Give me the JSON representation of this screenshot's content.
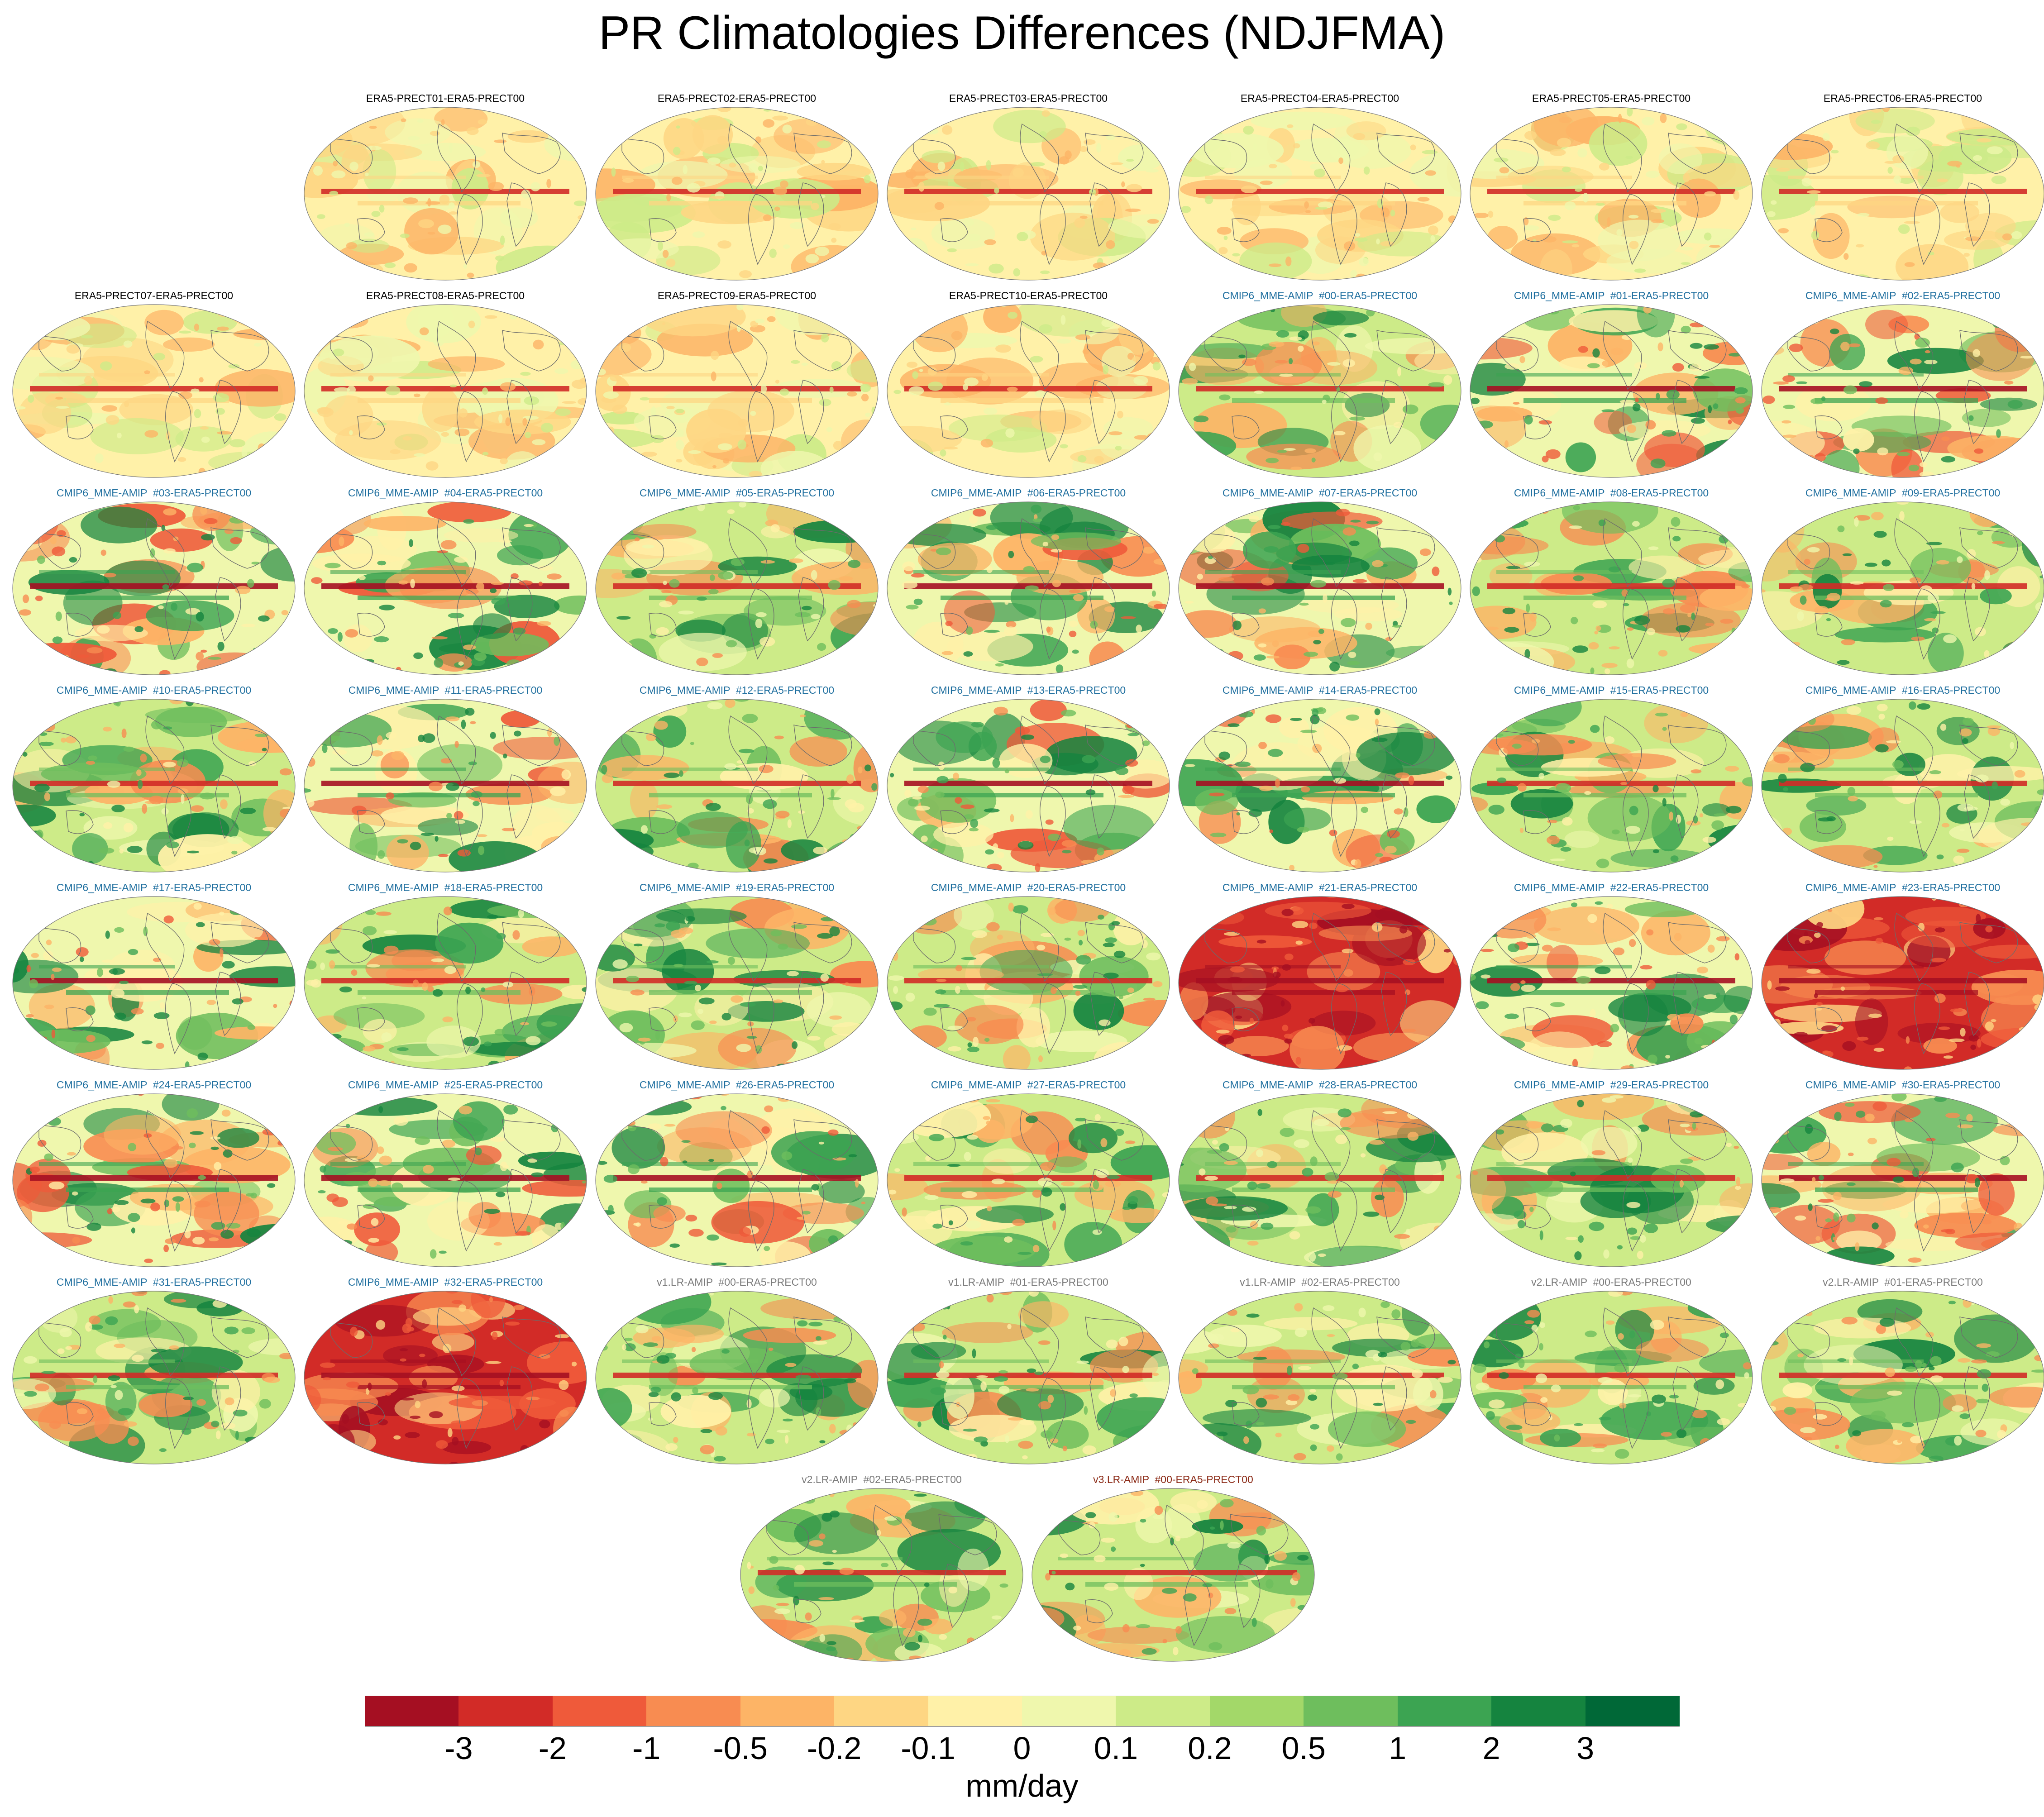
{
  "title": "PR Climatologies Differences (NDJFMA)",
  "colors": {
    "label_era5": "#000000",
    "label_cmip6": "#1f6f9f",
    "label_v1": "#7a7a7a",
    "label_v2": "#7a7a7a",
    "label_v3": "#8b2a16",
    "coastline": "#6b6b6b"
  },
  "panels": [
    {
      "label": "ERA5-PRECT01-ERA5-PRECT00",
      "group": "era5",
      "pattern": "era5"
    },
    {
      "label": "ERA5-PRECT02-ERA5-PRECT00",
      "group": "era5",
      "pattern": "era5"
    },
    {
      "label": "ERA5-PRECT03-ERA5-PRECT00",
      "group": "era5",
      "pattern": "era5"
    },
    {
      "label": "ERA5-PRECT04-ERA5-PRECT00",
      "group": "era5",
      "pattern": "era5"
    },
    {
      "label": "ERA5-PRECT05-ERA5-PRECT00",
      "group": "era5",
      "pattern": "era5"
    },
    {
      "label": "ERA5-PRECT06-ERA5-PRECT00",
      "group": "era5",
      "pattern": "era5"
    },
    {
      "label": "ERA5-PRECT07-ERA5-PRECT00",
      "group": "era5",
      "pattern": "era5"
    },
    {
      "label": "ERA5-PRECT08-ERA5-PRECT00",
      "group": "era5",
      "pattern": "era5"
    },
    {
      "label": "ERA5-PRECT09-ERA5-PRECT00",
      "group": "era5",
      "pattern": "era5"
    },
    {
      "label": "ERA5-PRECT10-ERA5-PRECT00",
      "group": "era5",
      "pattern": "era5"
    },
    {
      "label": "CMIP6_MME-AMIP  #00-ERA5-PRECT00",
      "group": "cmip6",
      "pattern": "green"
    },
    {
      "label": "CMIP6_MME-AMIP  #01-ERA5-PRECT00",
      "group": "cmip6",
      "pattern": "mixed"
    },
    {
      "label": "CMIP6_MME-AMIP  #02-ERA5-PRECT00",
      "group": "cmip6",
      "pattern": "mixed"
    },
    {
      "label": "CMIP6_MME-AMIP  #03-ERA5-PRECT00",
      "group": "cmip6",
      "pattern": "mixed"
    },
    {
      "label": "CMIP6_MME-AMIP  #04-ERA5-PRECT00",
      "group": "cmip6",
      "pattern": "mixed"
    },
    {
      "label": "CMIP6_MME-AMIP  #05-ERA5-PRECT00",
      "group": "cmip6",
      "pattern": "green"
    },
    {
      "label": "CMIP6_MME-AMIP  #06-ERA5-PRECT00",
      "group": "cmip6",
      "pattern": "mixed"
    },
    {
      "label": "CMIP6_MME-AMIP  #07-ERA5-PRECT00",
      "group": "cmip6",
      "pattern": "mixed"
    },
    {
      "label": "CMIP6_MME-AMIP  #08-ERA5-PRECT00",
      "group": "cmip6",
      "pattern": "green"
    },
    {
      "label": "CMIP6_MME-AMIP  #09-ERA5-PRECT00",
      "group": "cmip6",
      "pattern": "green"
    },
    {
      "label": "CMIP6_MME-AMIP  #10-ERA5-PRECT00",
      "group": "cmip6",
      "pattern": "green"
    },
    {
      "label": "CMIP6_MME-AMIP  #11-ERA5-PRECT00",
      "group": "cmip6",
      "pattern": "mixed"
    },
    {
      "label": "CMIP6_MME-AMIP  #12-ERA5-PRECT00",
      "group": "cmip6",
      "pattern": "green"
    },
    {
      "label": "CMIP6_MME-AMIP  #13-ERA5-PRECT00",
      "group": "cmip6",
      "pattern": "mixed"
    },
    {
      "label": "CMIP6_MME-AMIP  #14-ERA5-PRECT00",
      "group": "cmip6",
      "pattern": "mixed"
    },
    {
      "label": "CMIP6_MME-AMIP  #15-ERA5-PRECT00",
      "group": "cmip6",
      "pattern": "green"
    },
    {
      "label": "CMIP6_MME-AMIP  #16-ERA5-PRECT00",
      "group": "cmip6",
      "pattern": "green"
    },
    {
      "label": "CMIP6_MME-AMIP  #17-ERA5-PRECT00",
      "group": "cmip6",
      "pattern": "mixed"
    },
    {
      "label": "CMIP6_MME-AMIP  #18-ERA5-PRECT00",
      "group": "cmip6",
      "pattern": "green"
    },
    {
      "label": "CMIP6_MME-AMIP  #19-ERA5-PRECT00",
      "group": "cmip6",
      "pattern": "green"
    },
    {
      "label": "CMIP6_MME-AMIP  #20-ERA5-PRECT00",
      "group": "cmip6",
      "pattern": "green"
    },
    {
      "label": "CMIP6_MME-AMIP  #21-ERA5-PRECT00",
      "group": "cmip6",
      "pattern": "red"
    },
    {
      "label": "CMIP6_MME-AMIP  #22-ERA5-PRECT00",
      "group": "cmip6",
      "pattern": "mixed"
    },
    {
      "label": "CMIP6_MME-AMIP  #23-ERA5-PRECT00",
      "group": "cmip6",
      "pattern": "red"
    },
    {
      "label": "CMIP6_MME-AMIP  #24-ERA5-PRECT00",
      "group": "cmip6",
      "pattern": "mixed"
    },
    {
      "label": "CMIP6_MME-AMIP  #25-ERA5-PRECT00",
      "group": "cmip6",
      "pattern": "mixed"
    },
    {
      "label": "CMIP6_MME-AMIP  #26-ERA5-PRECT00",
      "group": "cmip6",
      "pattern": "mixed"
    },
    {
      "label": "CMIP6_MME-AMIP  #27-ERA5-PRECT00",
      "group": "cmip6",
      "pattern": "green"
    },
    {
      "label": "CMIP6_MME-AMIP  #28-ERA5-PRECT00",
      "group": "cmip6",
      "pattern": "green"
    },
    {
      "label": "CMIP6_MME-AMIP  #29-ERA5-PRECT00",
      "group": "cmip6",
      "pattern": "green"
    },
    {
      "label": "CMIP6_MME-AMIP  #30-ERA5-PRECT00",
      "group": "cmip6",
      "pattern": "mixed"
    },
    {
      "label": "CMIP6_MME-AMIP  #31-ERA5-PRECT00",
      "group": "cmip6",
      "pattern": "green"
    },
    {
      "label": "CMIP6_MME-AMIP  #32-ERA5-PRECT00",
      "group": "cmip6",
      "pattern": "red"
    },
    {
      "label": "v1.LR-AMIP  #00-ERA5-PRECT00",
      "group": "v1",
      "pattern": "green"
    },
    {
      "label": "v1.LR-AMIP  #01-ERA5-PRECT00",
      "group": "v1",
      "pattern": "green"
    },
    {
      "label": "v1.LR-AMIP  #02-ERA5-PRECT00",
      "group": "v1",
      "pattern": "green"
    },
    {
      "label": "v2.LR-AMIP  #00-ERA5-PRECT00",
      "group": "v2",
      "pattern": "green"
    },
    {
      "label": "v2.LR-AMIP  #01-ERA5-PRECT00",
      "group": "v2",
      "pattern": "green"
    },
    {
      "label": "v2.LR-AMIP  #02-ERA5-PRECT00",
      "group": "v2",
      "pattern": "green"
    },
    {
      "label": "v3.LR-AMIP  #00-ERA5-PRECT00",
      "group": "v3",
      "pattern": "green"
    }
  ],
  "colorbar": {
    "levels": [
      "-3",
      "-2",
      "-1",
      "-0.5",
      "-0.2",
      "-0.1",
      "0",
      "0.1",
      "0.2",
      "0.5",
      "1",
      "2",
      "3"
    ],
    "colors": [
      "#a50f22",
      "#d22b27",
      "#ef5a3a",
      "#f88c51",
      "#fdb466",
      "#fed683",
      "#fff1a8",
      "#eff7ad",
      "#cdeb88",
      "#a3d869",
      "#6ebe5d",
      "#3ca452",
      "#15843f",
      "#006837"
    ],
    "units": "mm/day"
  }
}
